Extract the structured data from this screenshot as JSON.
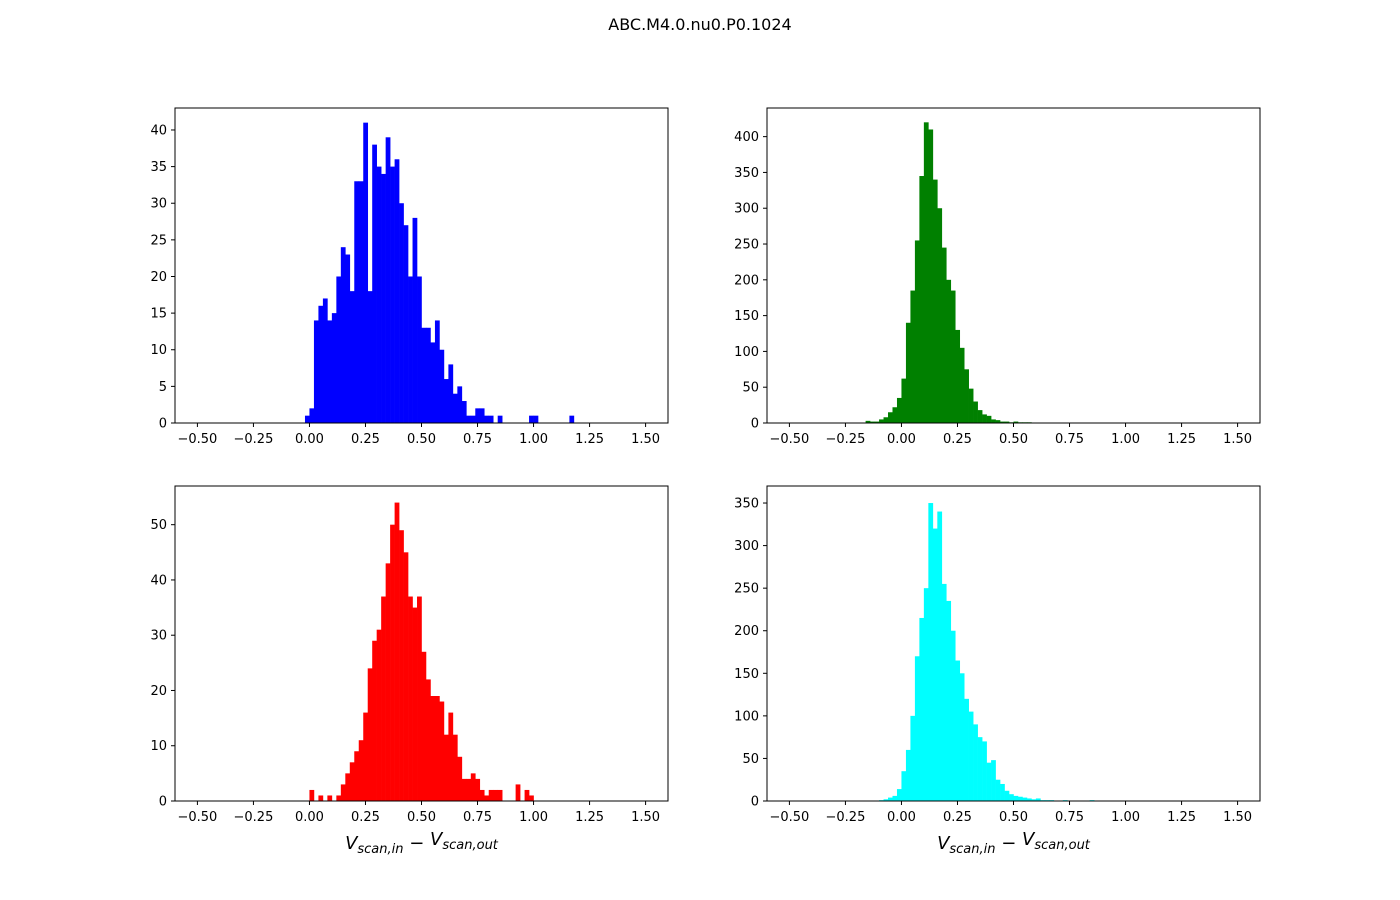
{
  "figure": {
    "suptitle": "ABC.M4.0.nu0.P0.1024"
  },
  "chart_data": [
    {
      "type": "bar",
      "position": "top-left",
      "color": "#0000ff",
      "xlim": [
        -0.6,
        1.6
      ],
      "ylim": [
        0,
        43
      ],
      "xticks": [
        -0.5,
        -0.25,
        0.0,
        0.25,
        0.5,
        0.75,
        1.0,
        1.25,
        1.5
      ],
      "xtick_labels": [
        "−0.50",
        "−0.25",
        "0.00",
        "0.25",
        "0.50",
        "0.75",
        "1.00",
        "1.25",
        "1.50"
      ],
      "yticks": [
        0,
        5,
        10,
        15,
        20,
        25,
        30,
        35,
        40
      ],
      "ytick_labels": [
        "0",
        "5",
        "10",
        "15",
        "20",
        "25",
        "30",
        "35",
        "40"
      ],
      "bin_width": 0.02,
      "bin_starts": [
        -0.02,
        0.0,
        0.02,
        0.04,
        0.06,
        0.08,
        0.1,
        0.12,
        0.14,
        0.16,
        0.18,
        0.2,
        0.22,
        0.24,
        0.26,
        0.28,
        0.3,
        0.32,
        0.34,
        0.36,
        0.38,
        0.4,
        0.42,
        0.44,
        0.46,
        0.48,
        0.5,
        0.52,
        0.54,
        0.56,
        0.58,
        0.6,
        0.62,
        0.64,
        0.66,
        0.68,
        0.7,
        0.72,
        0.74,
        0.76,
        0.78,
        0.8,
        0.82,
        0.84,
        0.86,
        0.88,
        0.9,
        0.92,
        0.94,
        0.96,
        0.98,
        1.0,
        1.16
      ],
      "counts": [
        1,
        2,
        14,
        16,
        17,
        14,
        15,
        20,
        24,
        23,
        18,
        33,
        33,
        41,
        18,
        38,
        35,
        34,
        39,
        35,
        36,
        30,
        27,
        20,
        28,
        20,
        13,
        13,
        11,
        14,
        10,
        6,
        8,
        4,
        5,
        3,
        1,
        1,
        2,
        2,
        1,
        1,
        0,
        1,
        0,
        0,
        0,
        0,
        0,
        0,
        1,
        1,
        1
      ],
      "xlabel": ""
    },
    {
      "type": "bar",
      "position": "top-right",
      "color": "#008000",
      "xlim": [
        -0.6,
        1.6
      ],
      "ylim": [
        0,
        440
      ],
      "xticks": [
        -0.5,
        -0.25,
        0.0,
        0.25,
        0.5,
        0.75,
        1.0,
        1.25,
        1.5
      ],
      "xtick_labels": [
        "−0.50",
        "−0.25",
        "0.00",
        "0.25",
        "0.50",
        "0.75",
        "1.00",
        "1.25",
        "1.50"
      ],
      "yticks": [
        0,
        50,
        100,
        150,
        200,
        250,
        300,
        350,
        400
      ],
      "ytick_labels": [
        "0",
        "50",
        "100",
        "150",
        "200",
        "250",
        "300",
        "350",
        "400"
      ],
      "bin_width": 0.02,
      "bin_starts": [
        -0.16,
        -0.14,
        -0.12,
        -0.1,
        -0.08,
        -0.06,
        -0.04,
        -0.02,
        0.0,
        0.02,
        0.04,
        0.06,
        0.08,
        0.1,
        0.12,
        0.14,
        0.16,
        0.18,
        0.2,
        0.22,
        0.24,
        0.26,
        0.28,
        0.3,
        0.32,
        0.34,
        0.36,
        0.38,
        0.4,
        0.42,
        0.44,
        0.46,
        0.48,
        0.5,
        0.52,
        0.54,
        0.56
      ],
      "counts": [
        3,
        2,
        2,
        5,
        8,
        15,
        22,
        35,
        62,
        140,
        185,
        255,
        345,
        420,
        410,
        340,
        300,
        245,
        200,
        185,
        130,
        105,
        75,
        48,
        30,
        18,
        12,
        10,
        5,
        4,
        2,
        2,
        1,
        2,
        1,
        1,
        1
      ],
      "xlabel": ""
    },
    {
      "type": "bar",
      "position": "bottom-left",
      "color": "#ff0000",
      "xlim": [
        -0.6,
        1.6
      ],
      "ylim": [
        0,
        57
      ],
      "xticks": [
        -0.5,
        -0.25,
        0.0,
        0.25,
        0.5,
        0.75,
        1.0,
        1.25,
        1.5
      ],
      "xtick_labels": [
        "−0.50",
        "−0.25",
        "0.00",
        "0.25",
        "0.50",
        "0.75",
        "1.00",
        "1.25",
        "1.50"
      ],
      "yticks": [
        0,
        10,
        20,
        30,
        40,
        50
      ],
      "ytick_labels": [
        "0",
        "10",
        "20",
        "30",
        "40",
        "50"
      ],
      "bin_width": 0.02,
      "bin_starts": [
        0.0,
        0.02,
        0.04,
        0.06,
        0.08,
        0.1,
        0.12,
        0.14,
        0.16,
        0.18,
        0.2,
        0.22,
        0.24,
        0.26,
        0.28,
        0.3,
        0.32,
        0.34,
        0.36,
        0.38,
        0.4,
        0.42,
        0.44,
        0.46,
        0.48,
        0.5,
        0.52,
        0.54,
        0.56,
        0.58,
        0.6,
        0.62,
        0.64,
        0.66,
        0.68,
        0.7,
        0.72,
        0.74,
        0.76,
        0.78,
        0.8,
        0.82,
        0.84,
        0.86,
        0.88,
        0.9,
        0.92,
        0.94,
        0.96,
        0.98
      ],
      "counts": [
        2,
        0,
        1,
        0,
        1,
        0,
        1,
        3,
        5,
        7,
        9,
        11,
        16,
        24,
        29,
        31,
        37,
        43,
        50,
        54,
        49,
        45,
        37,
        35,
        37,
        27,
        22,
        19,
        19,
        18,
        12,
        16,
        12,
        8,
        4,
        4,
        5,
        4,
        2,
        1,
        2,
        2,
        2,
        0,
        0,
        0,
        3,
        0,
        2,
        1
      ],
      "xlabel": "V_{scan,in} − V_{scan,out}"
    },
    {
      "type": "bar",
      "position": "bottom-right",
      "color": "#00ffff",
      "xlim": [
        -0.6,
        1.6
      ],
      "ylim": [
        0,
        370
      ],
      "xticks": [
        -0.5,
        -0.25,
        0.0,
        0.25,
        0.5,
        0.75,
        1.0,
        1.25,
        1.5
      ],
      "xtick_labels": [
        "−0.50",
        "−0.25",
        "0.00",
        "0.25",
        "0.50",
        "0.75",
        "1.00",
        "1.25",
        "1.50"
      ],
      "yticks": [
        0,
        50,
        100,
        150,
        200,
        250,
        300,
        350
      ],
      "ytick_labels": [
        "0",
        "50",
        "100",
        "150",
        "200",
        "250",
        "300",
        "350"
      ],
      "bin_width": 0.02,
      "bin_starts": [
        -0.1,
        -0.08,
        -0.06,
        -0.04,
        -0.02,
        0.0,
        0.02,
        0.04,
        0.06,
        0.08,
        0.1,
        0.12,
        0.14,
        0.16,
        0.18,
        0.2,
        0.22,
        0.24,
        0.26,
        0.28,
        0.3,
        0.32,
        0.34,
        0.36,
        0.38,
        0.4,
        0.42,
        0.44,
        0.46,
        0.48,
        0.5,
        0.52,
        0.54,
        0.56,
        0.58,
        0.6,
        0.62,
        0.64,
        0.66,
        0.68,
        0.7,
        0.72,
        0.74,
        0.76,
        0.78,
        0.8,
        0.82,
        0.84
      ],
      "counts": [
        1,
        2,
        4,
        6,
        14,
        35,
        60,
        100,
        170,
        215,
        250,
        350,
        320,
        340,
        255,
        235,
        200,
        165,
        150,
        120,
        105,
        90,
        75,
        70,
        45,
        48,
        25,
        20,
        12,
        8,
        6,
        5,
        4,
        3,
        2,
        3,
        1,
        1,
        1,
        0,
        0,
        1,
        0,
        0,
        0,
        0,
        0,
        1
      ],
      "xlabel": "V_{scan,in} − V_{scan,out}"
    }
  ]
}
